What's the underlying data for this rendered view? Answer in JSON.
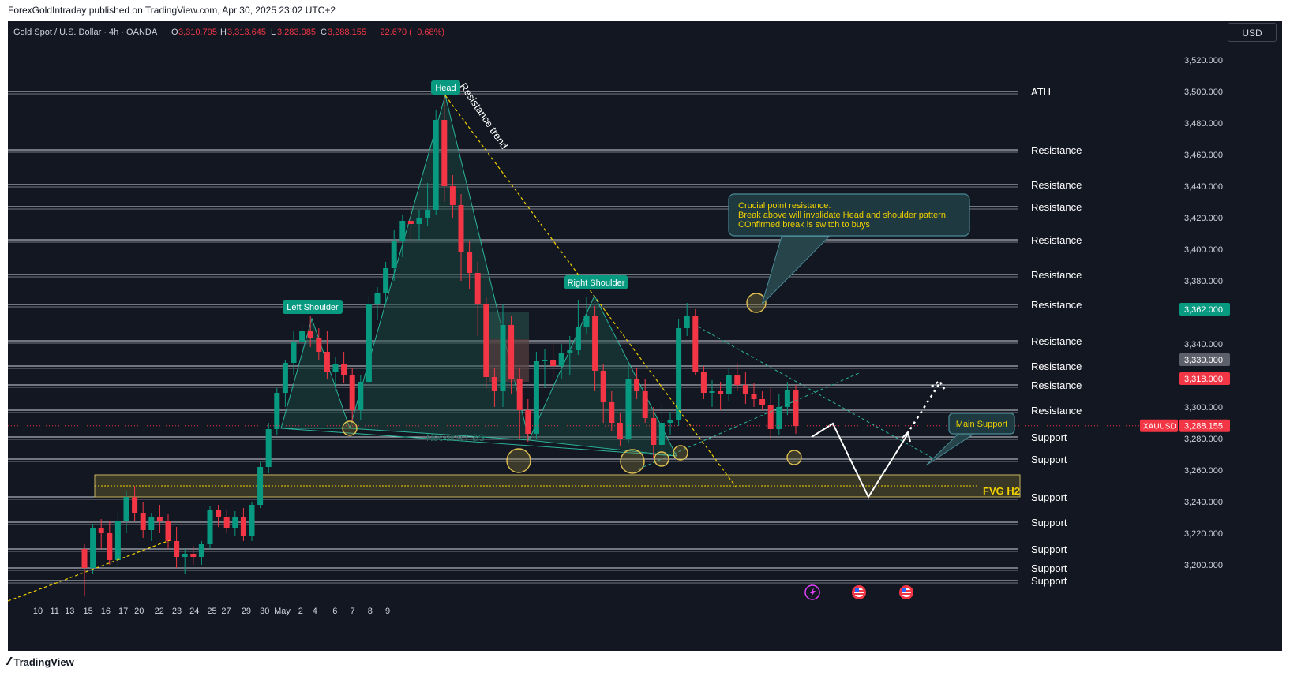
{
  "header": {
    "publisher": "ForexGoldIntraday published on TradingView.com, Apr 30, 2025 23:02 UTC+2"
  },
  "legend": {
    "symbol": "Gold Spot / U.S. Dollar · 4h · OANDA",
    "o_label": "O",
    "o_value": "3,310.795",
    "h_label": "H",
    "h_value": "3,313.645",
    "l_label": "L",
    "l_value": "3,283.085",
    "c_label": "C",
    "c_value": "3,288.155",
    "change": "−22.670 (−0.68%)"
  },
  "currency_button": "USD",
  "footer": {
    "brand": "TradingView"
  },
  "colors": {
    "background": "#131722",
    "up": "#089981",
    "down": "#f23645",
    "level_line": "#d1d4dc",
    "yellow": "#f0d000",
    "pattern_fill": "#1b4d45"
  },
  "chart_data": {
    "type": "candlestick",
    "symbol": "XAUUSD",
    "timeframe": "4h",
    "y_axis": {
      "ticks": [
        3200,
        3220,
        3240,
        3260,
        3280,
        3300,
        3320,
        3340,
        3380,
        3400,
        3420,
        3440,
        3460,
        3480,
        3500,
        3520
      ],
      "tick_labels": [
        "3,200.000",
        "3,220.000",
        "3,240.000",
        "3,260.000",
        "3,280.000",
        "3,300.000",
        "3,320.000",
        "3,340.000",
        "3,380.000",
        "3,400.000",
        "3,420.000",
        "3,440.000",
        "3,460.000",
        "3,480.000",
        "3,500.000",
        "3,520.000"
      ],
      "range": [
        3185,
        3530
      ]
    },
    "x_axis": {
      "tick_labels": [
        "10",
        "11",
        "13",
        "15",
        "16",
        "17",
        "20",
        "22",
        "23",
        "24",
        "25",
        "27",
        "29",
        "30",
        "May",
        "2",
        "4",
        "6",
        "7",
        "8",
        "9"
      ],
      "tick_index": [
        0,
        2,
        3.8,
        6,
        8.1,
        10.2,
        12.1,
        14.5,
        16.6,
        18.7,
        20.8,
        22.5,
        24.9,
        27.1,
        29.2,
        31.4,
        33.1,
        35.5,
        37.6,
        39.7,
        41.8
      ]
    },
    "candles": [
      [
        3210,
        3213,
        3180,
        3198
      ],
      [
        3198,
        3226,
        3194,
        3223
      ],
      [
        3223,
        3229,
        3210,
        3220
      ],
      [
        3220,
        3228,
        3200,
        3203
      ],
      [
        3203,
        3233,
        3198,
        3228
      ],
      [
        3228,
        3247,
        3220,
        3243
      ],
      [
        3243,
        3250,
        3228,
        3233
      ],
      [
        3233,
        3240,
        3217,
        3222
      ],
      [
        3222,
        3233,
        3215,
        3230
      ],
      [
        3230,
        3238,
        3220,
        3228
      ],
      [
        3228,
        3232,
        3210,
        3215
      ],
      [
        3215,
        3224,
        3198,
        3205
      ],
      [
        3205,
        3210,
        3194,
        3207
      ],
      [
        3207,
        3212,
        3200,
        3205
      ],
      [
        3205,
        3215,
        3200,
        3213
      ],
      [
        3213,
        3237,
        3210,
        3235
      ],
      [
        3235,
        3238,
        3224,
        3230
      ],
      [
        3230,
        3235,
        3220,
        3223
      ],
      [
        3223,
        3234,
        3218,
        3230
      ],
      [
        3230,
        3236,
        3215,
        3218
      ],
      [
        3218,
        3240,
        3215,
        3238
      ],
      [
        3238,
        3265,
        3236,
        3262
      ],
      [
        3262,
        3290,
        3258,
        3286
      ],
      [
        3286,
        3312,
        3282,
        3309
      ],
      [
        3309,
        3330,
        3300,
        3328
      ],
      [
        3328,
        3348,
        3320,
        3341
      ],
      [
        3341,
        3352,
        3330,
        3348
      ],
      [
        3348,
        3358,
        3338,
        3344
      ],
      [
        3344,
        3350,
        3330,
        3335
      ],
      [
        3335,
        3348,
        3318,
        3322
      ],
      [
        3322,
        3332,
        3310,
        3327
      ],
      [
        3327,
        3335,
        3315,
        3320
      ],
      [
        3320,
        3325,
        3290,
        3298
      ],
      [
        3298,
        3320,
        3292,
        3316
      ],
      [
        3316,
        3370,
        3312,
        3365
      ],
      [
        3365,
        3376,
        3355,
        3372
      ],
      [
        3372,
        3392,
        3365,
        3388
      ],
      [
        3388,
        3412,
        3380,
        3405
      ],
      [
        3405,
        3422,
        3395,
        3418
      ],
      [
        3418,
        3430,
        3405,
        3416
      ],
      [
        3416,
        3425,
        3406,
        3420
      ],
      [
        3420,
        3442,
        3415,
        3425
      ],
      [
        3425,
        3488,
        3422,
        3482
      ],
      [
        3482,
        3500,
        3430,
        3440
      ],
      [
        3440,
        3447,
        3420,
        3428
      ],
      [
        3428,
        3435,
        3380,
        3398
      ],
      [
        3398,
        3405,
        3375,
        3385
      ],
      [
        3385,
        3392,
        3345,
        3365
      ],
      [
        3365,
        3370,
        3312,
        3319
      ],
      [
        3319,
        3325,
        3300,
        3310
      ],
      [
        3310,
        3365,
        3300,
        3352
      ],
      [
        3352,
        3358,
        3308,
        3318
      ],
      [
        3318,
        3325,
        3280,
        3298
      ],
      [
        3298,
        3305,
        3278,
        3283
      ],
      [
        3283,
        3335,
        3280,
        3329
      ],
      [
        3329,
        3337,
        3312,
        3330
      ],
      [
        3330,
        3340,
        3318,
        3326
      ],
      [
        3326,
        3340,
        3318,
        3334
      ],
      [
        3334,
        3345,
        3320,
        3336
      ],
      [
        3336,
        3368,
        3333,
        3351
      ],
      [
        3351,
        3370,
        3346,
        3358
      ],
      [
        3358,
        3364,
        3310,
        3323
      ],
      [
        3323,
        3327,
        3290,
        3303
      ],
      [
        3303,
        3310,
        3285,
        3290
      ],
      [
        3290,
        3296,
        3275,
        3280
      ],
      [
        3280,
        3327,
        3277,
        3318
      ],
      [
        3318,
        3325,
        3305,
        3310
      ],
      [
        3310,
        3318,
        3290,
        3293
      ],
      [
        3293,
        3300,
        3268,
        3276
      ],
      [
        3276,
        3302,
        3272,
        3290
      ],
      [
        3290,
        3297,
        3282,
        3292
      ],
      [
        3292,
        3356,
        3288,
        3350
      ],
      [
        3350,
        3366,
        3345,
        3358
      ],
      [
        3358,
        3362,
        3320,
        3322
      ],
      [
        3322,
        3326,
        3305,
        3309
      ],
      [
        3309,
        3317,
        3300,
        3310
      ],
      [
        3310,
        3316,
        3298,
        3308
      ],
      [
        3308,
        3325,
        3304,
        3320
      ],
      [
        3320,
        3328,
        3310,
        3314
      ],
      [
        3314,
        3322,
        3302,
        3308
      ],
      [
        3308,
        3315,
        3300,
        3305
      ],
      [
        3305,
        3310,
        3298,
        3301
      ],
      [
        3301,
        3312,
        3280,
        3286
      ],
      [
        3286,
        3308,
        3282,
        3300
      ],
      [
        3300,
        3316,
        3295,
        3311
      ],
      [
        3311,
        3314,
        3283,
        3288
      ]
    ],
    "horizontal_levels": [
      {
        "price": 3500,
        "label": "ATH"
      },
      {
        "price": 3463,
        "label": "Resistance"
      },
      {
        "price": 3441,
        "label": "Resistance"
      },
      {
        "price": 3427,
        "label": "Resistance"
      },
      {
        "price": 3406,
        "label": "Resistance"
      },
      {
        "price": 3384,
        "label": "Resistance"
      },
      {
        "price": 3365,
        "label": "Resistance"
      },
      {
        "price": 3342,
        "label": "Resistance"
      },
      {
        "price": 3326,
        "label": "Resistance"
      },
      {
        "price": 3314,
        "label": "Resistance"
      },
      {
        "price": 3298,
        "label": "Resistance"
      },
      {
        "price": 3281,
        "label": "Support"
      },
      {
        "price": 3267,
        "label": "Support"
      },
      {
        "price": 3243,
        "label": "Support"
      },
      {
        "price": 3227,
        "label": "Support"
      },
      {
        "price": 3210,
        "label": "Support"
      },
      {
        "price": 3198,
        "label": "Support"
      },
      {
        "price": 3190,
        "label": "Support"
      }
    ],
    "price_tags": [
      {
        "label": "3,362.000",
        "price": 3362,
        "color": "#089981"
      },
      {
        "label": "3,330.000",
        "price": 3330,
        "color": "#5d606b"
      },
      {
        "label": "3,318.000",
        "price": 3318,
        "color": "#f23645"
      },
      {
        "label": "3,288.155",
        "price": 3288.155,
        "color": "#f23645",
        "symbol": "XAUUSD"
      }
    ],
    "annotations": {
      "head": "Head",
      "left_shoulder": "Left Shoulder",
      "right_shoulder": "Right Shoulder",
      "neckline": "Neckline H&S",
      "trend": "Resistance trend",
      "fvg": "FVG H2",
      "main_support": "Main Support",
      "callout_line1": "Crucial point resistance.",
      "callout_line2": "Break above will invalidate Head and shoulder pattern.",
      "callout_line3": "COnfirmed break is switch to buys"
    },
    "fvg_zone": [
      3243,
      3257
    ],
    "projection": [
      [
        3288,
        3285
      ],
      [
        3298,
        3245
      ],
      [
        3285,
        3322
      ]
    ]
  }
}
